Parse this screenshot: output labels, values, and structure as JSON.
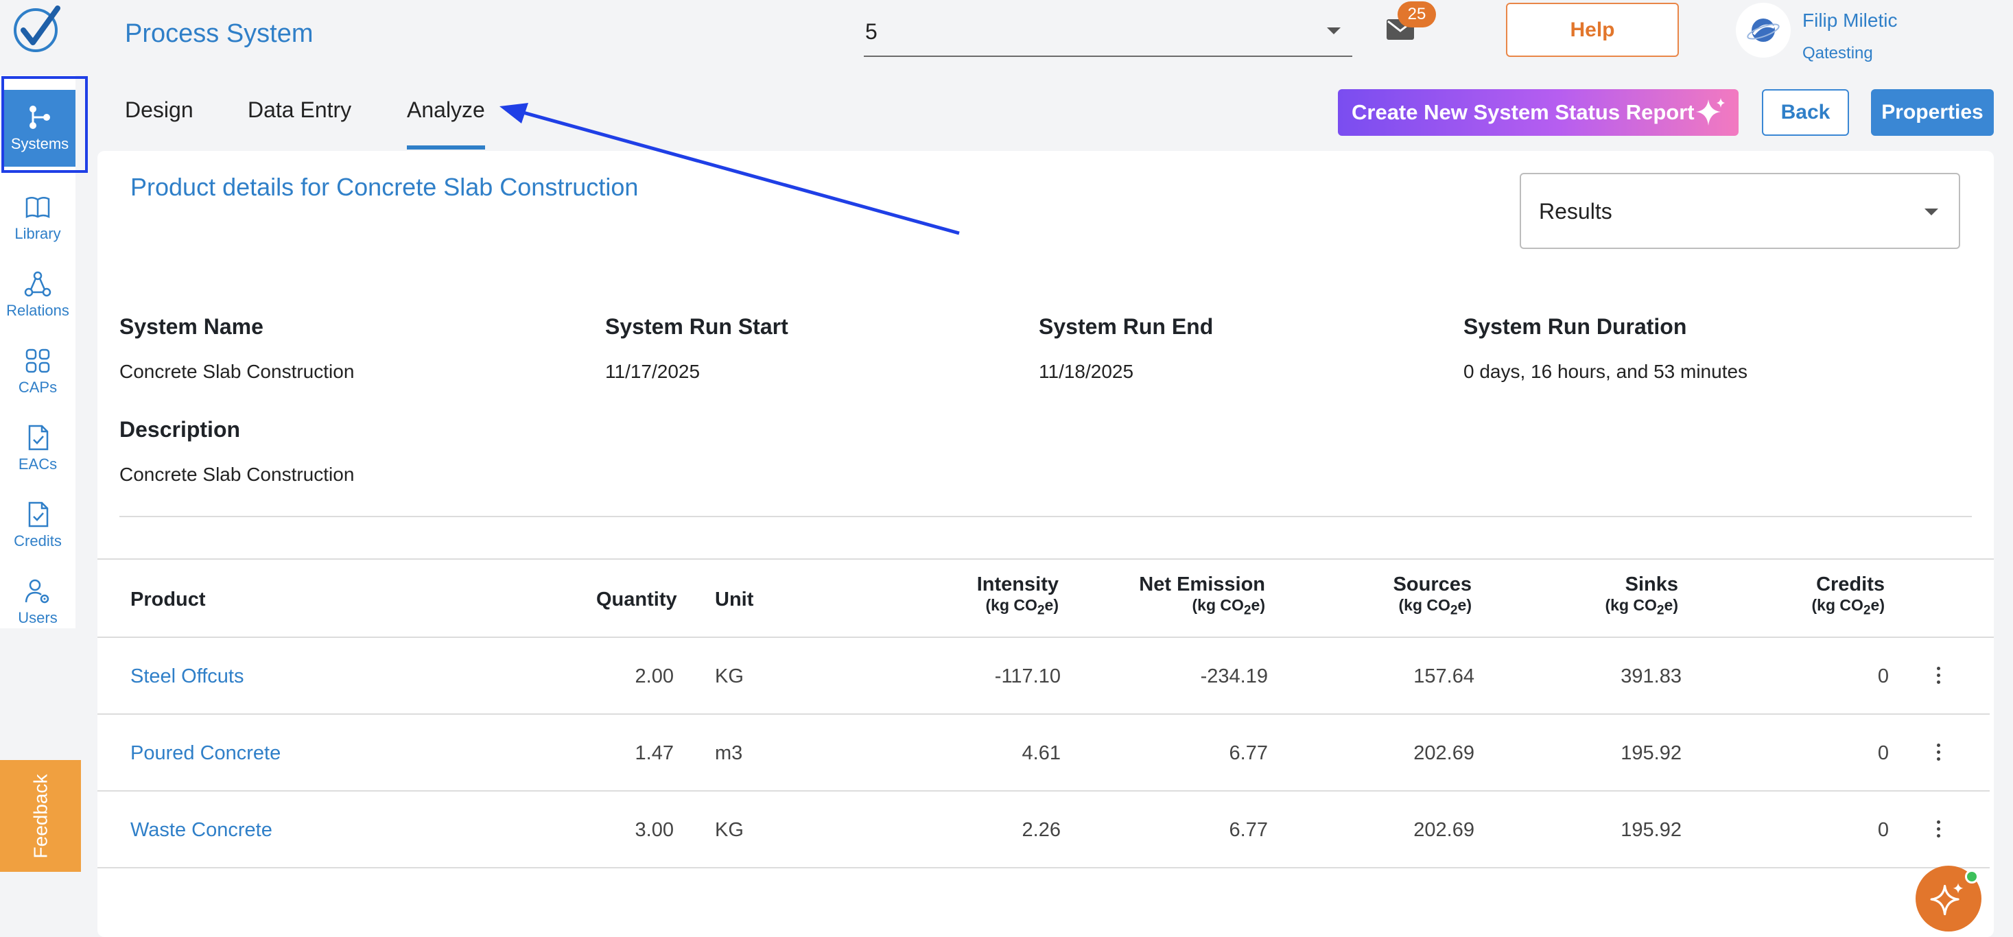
{
  "app": {
    "title": "Process System"
  },
  "header": {
    "system_select_value": "5",
    "mail_badge": "25",
    "help_label": "Help",
    "user": {
      "name": "Filip Miletic",
      "org": "Qatesting"
    }
  },
  "sidebar": {
    "items": [
      {
        "label": "Systems",
        "icon": "systems-icon"
      },
      {
        "label": "Library",
        "icon": "book-icon"
      },
      {
        "label": "Relations",
        "icon": "relations-icon"
      },
      {
        "label": "CAPs",
        "icon": "grid-icon"
      },
      {
        "label": "EACs",
        "icon": "doc-check-icon"
      },
      {
        "label": "Credits",
        "icon": "doc-check-icon"
      },
      {
        "label": "Users",
        "icon": "user-gear-icon"
      }
    ],
    "active": "Systems"
  },
  "tabs": [
    {
      "label": "Design"
    },
    {
      "label": "Data Entry"
    },
    {
      "label": "Analyze"
    }
  ],
  "active_tab": "Analyze",
  "actions": {
    "create_report": "Create New System Status Report",
    "back": "Back",
    "properties": "Properties"
  },
  "card": {
    "title": "Product details for Concrete Slab Construction",
    "results_select": "Results"
  },
  "details": {
    "system_name": {
      "label": "System Name",
      "value": "Concrete Slab Construction"
    },
    "run_start": {
      "label": "System Run Start",
      "value": "11/17/2025"
    },
    "run_end": {
      "label": "System Run End",
      "value": "11/18/2025"
    },
    "run_duration": {
      "label": "System Run Duration",
      "value": "0 days, 16 hours, and 53 minutes"
    },
    "description": {
      "label": "Description",
      "value": "Concrete Slab Construction"
    }
  },
  "table": {
    "headers": {
      "product": "Product",
      "quantity": "Quantity",
      "unit": "Unit",
      "intensity": "Intensity",
      "net_emission": "Net Emission",
      "sources": "Sources",
      "sinks": "Sinks",
      "credits": "Credits",
      "unit_pre": "(kg CO",
      "unit_sub": "2",
      "unit_post": "e)"
    },
    "rows": [
      {
        "product": "Steel Offcuts",
        "quantity": "2.00",
        "unit": "KG",
        "intensity": "-117.10",
        "net_emission": "-234.19",
        "sources": "157.64",
        "sinks": "391.83",
        "credits": "0"
      },
      {
        "product": "Poured Concrete",
        "quantity": "1.47",
        "unit": "m3",
        "intensity": "4.61",
        "net_emission": "6.77",
        "sources": "202.69",
        "sinks": "195.92",
        "credits": "0"
      },
      {
        "product": "Waste Concrete",
        "quantity": "3.00",
        "unit": "KG",
        "intensity": "2.26",
        "net_emission": "6.77",
        "sources": "202.69",
        "sinks": "195.92",
        "credits": "0"
      }
    ]
  },
  "feedback_label": "Feedback",
  "colors": {
    "accent": "#2f7fc8",
    "annotation": "#1f3fe6",
    "help": "#e2762c"
  }
}
